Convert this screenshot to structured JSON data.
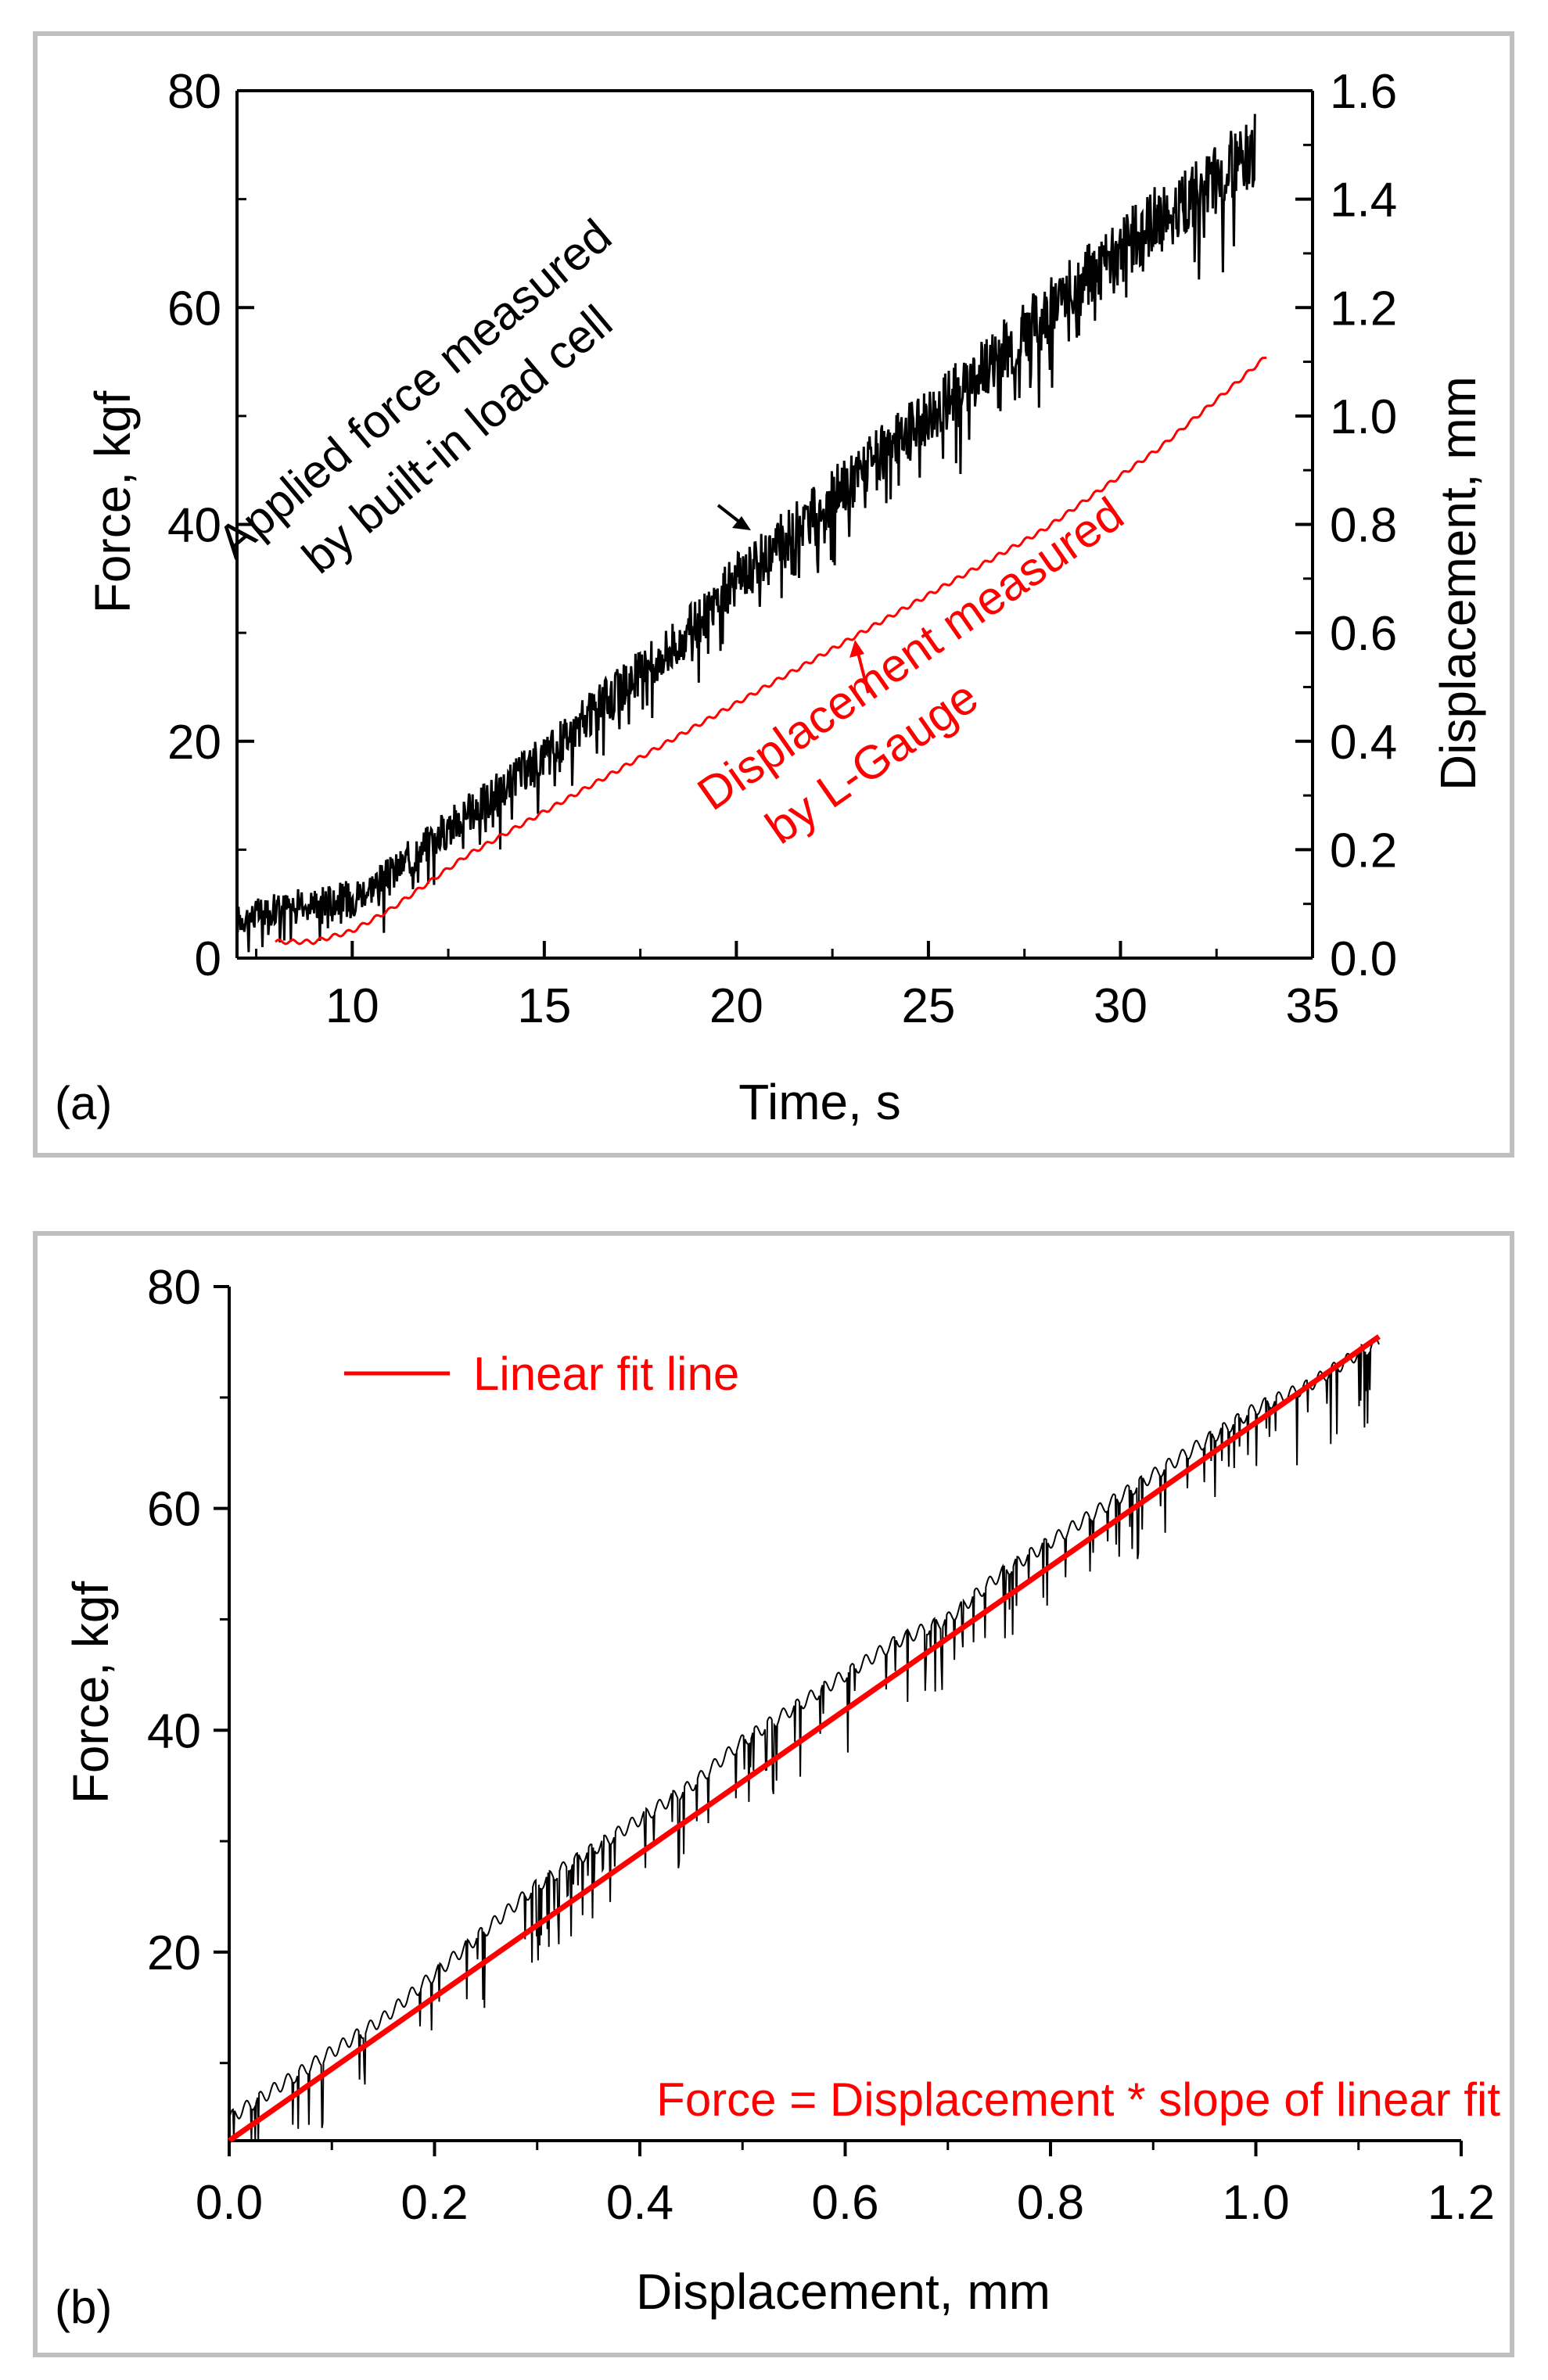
{
  "chart_data": [
    {
      "panel_label": "(a)",
      "type": "line",
      "xlabel": "Time, s",
      "ylabel": "Force, kgf",
      "y2label": "Displacement, mm",
      "xlim": [
        7,
        35
      ],
      "ylim": [
        0,
        80
      ],
      "y2lim": [
        0,
        1.6
      ],
      "xticks": [
        10,
        15,
        20,
        25,
        30,
        35
      ],
      "yticks": [
        0,
        20,
        40,
        60,
        80
      ],
      "y2ticks": [
        0.0,
        0.2,
        0.4,
        0.6,
        0.8,
        1.0,
        1.2,
        1.4,
        1.6
      ],
      "y2ticklabels": [
        "0.0",
        "0.2",
        "0.4",
        "0.6",
        "0.8",
        "1.0",
        "1.2",
        "1.4",
        "1.6"
      ],
      "grid": false,
      "series": [
        {
          "color": "#000000",
          "axis": "left",
          "x": [
            7,
            8,
            9,
            10,
            11,
            12,
            13,
            14,
            15,
            16,
            17,
            18,
            19,
            20,
            21,
            22,
            23,
            24,
            25,
            26,
            27,
            28,
            29,
            30,
            31,
            32,
            33,
            33.5
          ],
          "values": [
            3,
            4,
            4.5,
            5,
            7,
            10,
            12.5,
            15,
            18,
            21,
            24,
            27,
            30,
            34,
            37,
            40,
            43,
            46,
            49,
            52,
            55,
            58,
            61,
            64,
            67,
            69,
            72,
            73
          ]
        },
        {
          "color": "#ff0000",
          "axis": "right",
          "x": [
            8,
            9,
            10,
            11,
            12,
            13,
            14,
            15,
            16,
            17,
            18,
            19,
            20,
            21,
            22,
            23,
            24,
            25,
            26,
            27,
            28,
            29,
            30,
            31,
            32,
            33,
            33.8
          ],
          "values": [
            0.03,
            0.03,
            0.05,
            0.09,
            0.14,
            0.19,
            0.23,
            0.27,
            0.31,
            0.35,
            0.39,
            0.43,
            0.47,
            0.51,
            0.55,
            0.59,
            0.63,
            0.67,
            0.71,
            0.75,
            0.79,
            0.84,
            0.89,
            0.94,
            1.0,
            1.06,
            1.11
          ]
        }
      ],
      "annotations": [
        {
          "text": "Applied force measured",
          "color": "#000000"
        },
        {
          "text": "by built-in load cell",
          "color": "#000000"
        },
        {
          "text": "Displacement measured",
          "color": "#ff0000"
        },
        {
          "text": "by L-Gauge",
          "color": "#ff0000"
        }
      ]
    },
    {
      "panel_label": "(b)",
      "type": "line",
      "xlabel": "Displacement, mm",
      "ylabel": "Force, kgf",
      "xlim": [
        0,
        1.2
      ],
      "ylim": [
        3,
        80
      ],
      "xticks": [
        0.0,
        0.2,
        0.4,
        0.6,
        0.8,
        1.0,
        1.2
      ],
      "xticklabels": [
        "0.0",
        "0.2",
        "0.4",
        "0.6",
        "0.8",
        "1.0",
        "1.2"
      ],
      "yticks": [
        20,
        40,
        60,
        80
      ],
      "grid": false,
      "series": [
        {
          "color": "#000000",
          "x": [
            0.0,
            0.05,
            0.1,
            0.15,
            0.2,
            0.25,
            0.3,
            0.35,
            0.4,
            0.45,
            0.5,
            0.55,
            0.6,
            0.65,
            0.7,
            0.75,
            0.8,
            0.85,
            0.9,
            0.95,
            1.0,
            1.05,
            1.1,
            1.12
          ],
          "values": [
            5,
            8,
            11,
            14,
            18,
            22,
            26,
            29,
            32,
            35,
            39,
            42,
            45,
            48,
            50,
            54,
            57,
            60,
            63,
            66,
            69,
            71,
            74,
            75
          ]
        },
        {
          "name": "Linear fit line",
          "color": "#ff0000",
          "x": [
            0.0,
            1.12
          ],
          "values": [
            3,
            75.5
          ]
        }
      ],
      "legend": {
        "position": "top-left",
        "entries": [
          "Linear fit line"
        ]
      },
      "annotations": [
        {
          "text": "Force = Displacement * slope of linear fit",
          "color": "#ff0000"
        }
      ]
    }
  ]
}
